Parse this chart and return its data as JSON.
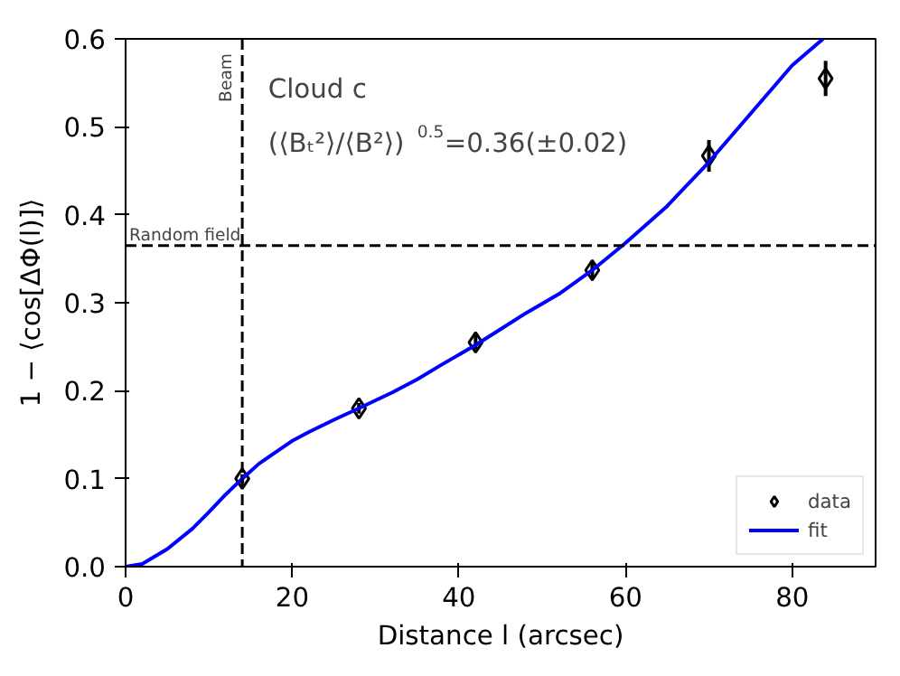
{
  "chart_data": {
    "type": "scatter",
    "xlabel": "Distance l (arcsec)",
    "ylabel": "1 − ⟨cos[ΔΦ(l)]⟩",
    "xlim": [
      0,
      90
    ],
    "ylim": [
      0,
      0.6
    ],
    "xticks": [
      0,
      20,
      40,
      60,
      80
    ],
    "yticks": [
      {
        "value": 0.0,
        "label": "0.0"
      },
      0.1,
      0.2,
      0.3,
      0.4,
      0.5,
      0.6
    ],
    "grid": false,
    "legend": "bottom right",
    "series": [
      {
        "name": "data",
        "marker": "diamond",
        "color": "#000000",
        "x": [
          14,
          28,
          42,
          56,
          70,
          84
        ],
        "values": [
          0.1,
          0.18,
          0.255,
          0.337,
          0.467,
          0.555
        ],
        "errors": [
          0.005,
          0.006,
          0.008,
          0.01,
          0.018,
          0.02
        ]
      },
      {
        "name": "fit",
        "type": "line",
        "line_style": "solid",
        "color": "#0000ff",
        "x": [
          0,
          2,
          5,
          8,
          10,
          12,
          14,
          16,
          18,
          20,
          22,
          25,
          28,
          32,
          35,
          38,
          42,
          45,
          48,
          52,
          56,
          60,
          65,
          70,
          75,
          80,
          83.7
        ],
        "values": [
          0,
          0.003,
          0.02,
          0.043,
          0.062,
          0.082,
          0.1,
          0.117,
          0.13,
          0.143,
          0.153,
          0.167,
          0.18,
          0.198,
          0.213,
          0.23,
          0.252,
          0.27,
          0.288,
          0.31,
          0.337,
          0.368,
          0.41,
          0.46,
          0.515,
          0.57,
          0.6
        ]
      }
    ],
    "ref_lines": [
      {
        "axis": "x",
        "value": 14,
        "label": "Beam",
        "color": "#000000",
        "line_style": "dashed"
      },
      {
        "axis": "y",
        "value": 0.365,
        "label": "Random field",
        "color": "#000000",
        "line_style": "dashed"
      }
    ],
    "annotations": [
      "Cloud c",
      "(⟨Bₜ²⟩/⟨B²⟩)$^{0.5}$=0.36(±0.02)"
    ]
  }
}
